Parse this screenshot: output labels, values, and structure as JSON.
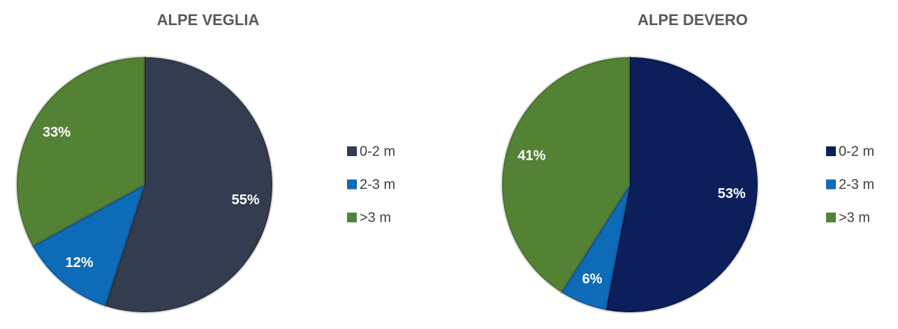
{
  "chart_data": [
    {
      "type": "pie",
      "title": "ALPE VEGLIA",
      "categories": [
        "0-2 m",
        "2-3 m",
        ">3 m"
      ],
      "values": [
        55,
        12,
        33
      ],
      "value_labels": [
        "55%",
        "12%",
        "33%"
      ],
      "colors": [
        "#333d4f",
        "#0e6bb8",
        "#548235"
      ]
    },
    {
      "type": "pie",
      "title": "ALPE DEVERO",
      "categories": [
        "0-2 m",
        "2-3 m",
        ">3 m"
      ],
      "values": [
        53,
        6,
        41
      ],
      "value_labels": [
        "53%",
        "6%",
        "41%"
      ],
      "colors": [
        "#0c1f5a",
        "#0e6bb8",
        "#548235"
      ]
    }
  ]
}
